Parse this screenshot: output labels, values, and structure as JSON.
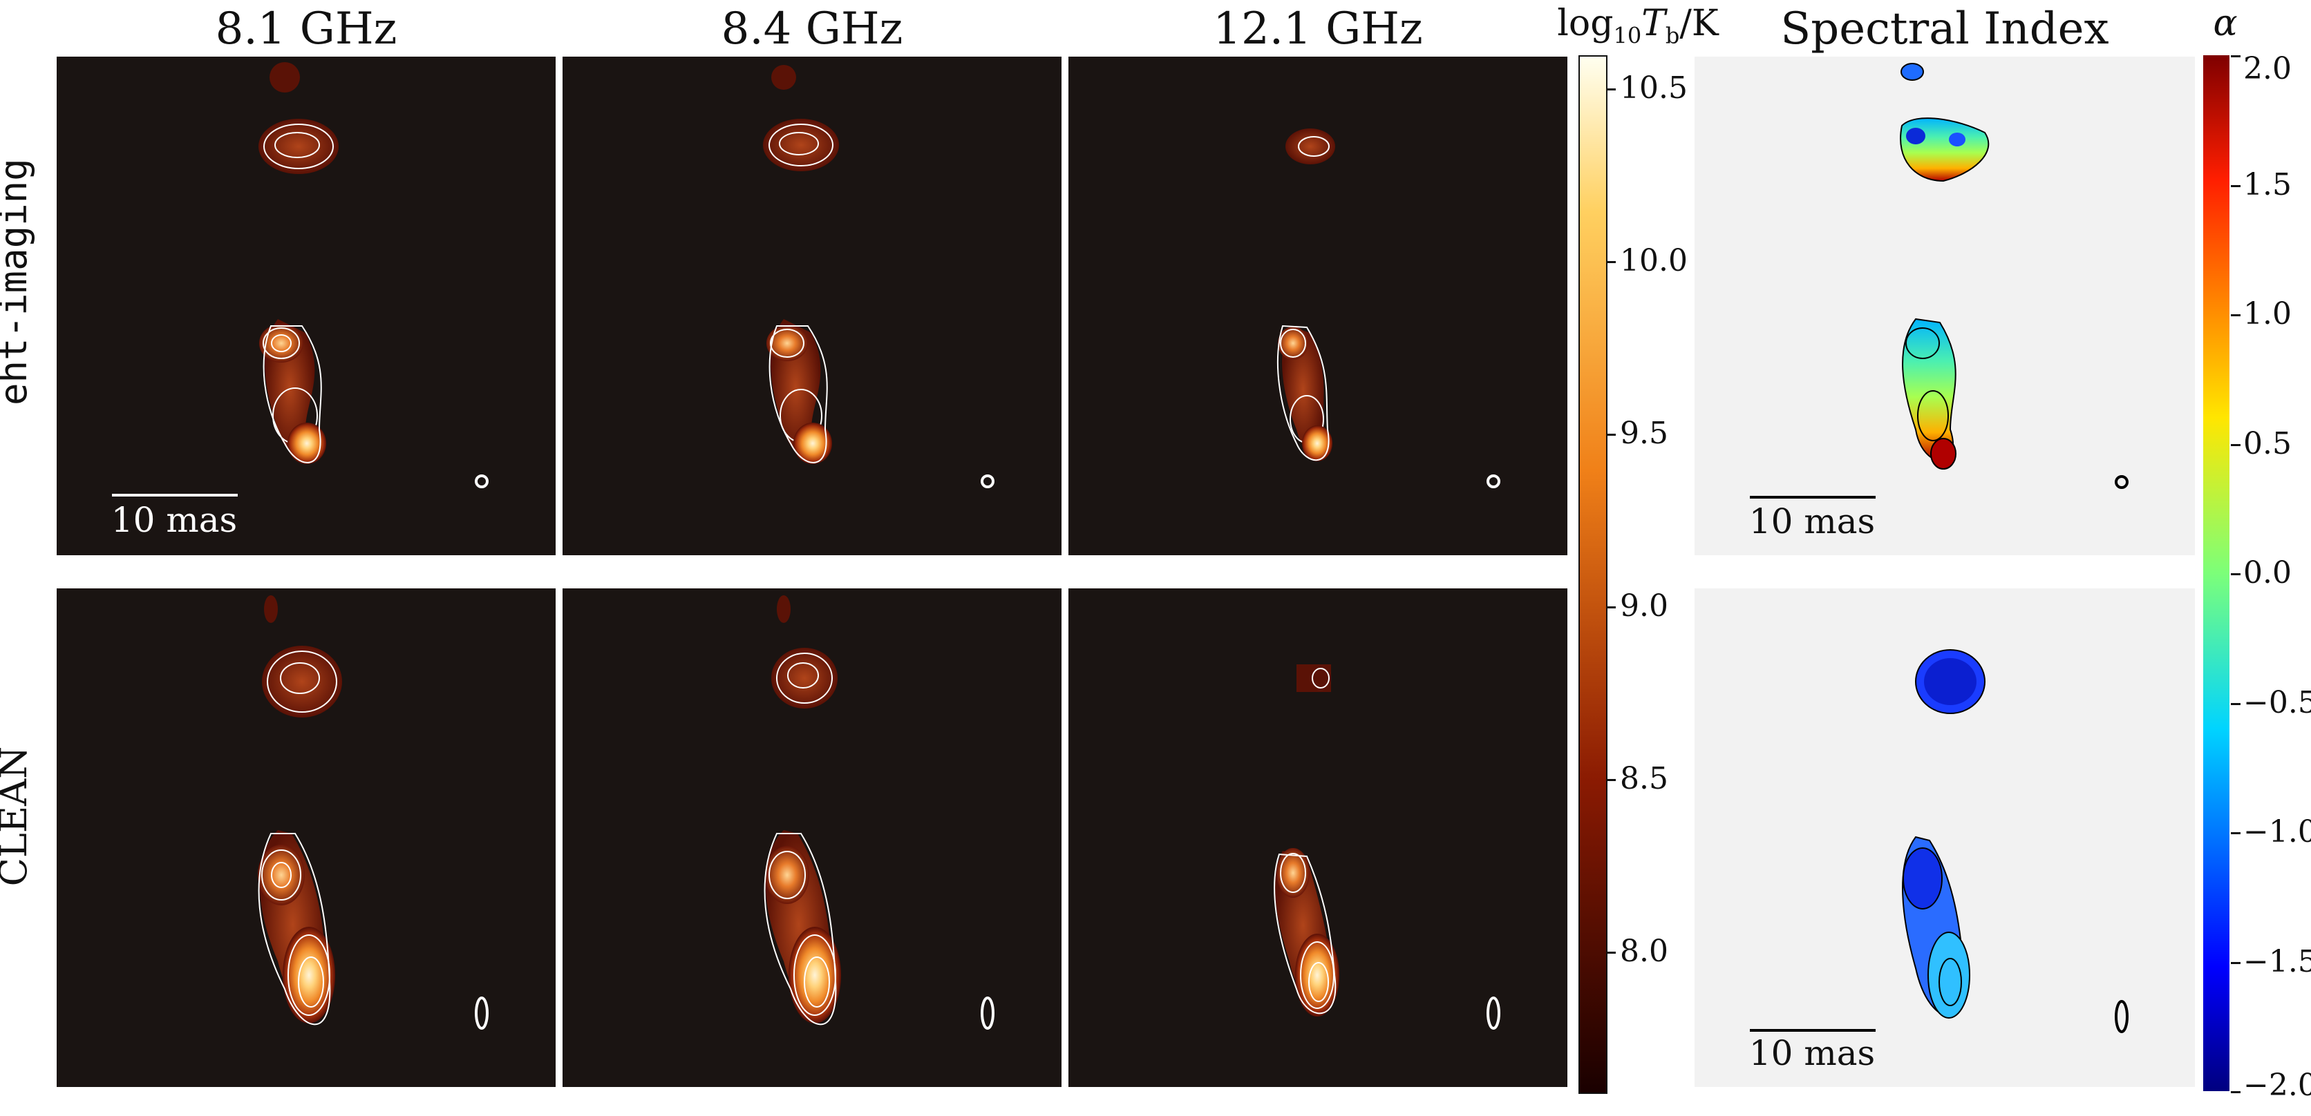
{
  "columns": [
    "8.1 GHz",
    "8.4 GHz",
    "12.1 GHz",
    "Spectral Index"
  ],
  "rows": [
    "eht-imaging",
    "CLEAN"
  ],
  "scalebar_label": "10 mas",
  "tb_colorbar": {
    "title": "log10Tb/K",
    "ticks": [
      "10.5",
      "10.0",
      "9.5",
      "9.0",
      "8.5",
      "8.0"
    ],
    "colormap": "afmhot"
  },
  "alpha_colorbar": {
    "title": "α",
    "ticks": [
      "2.0",
      "1.5",
      "1.0",
      "0.5",
      "0.0",
      "−0.5",
      "−1.0",
      "−1.5",
      "−2.0"
    ],
    "colormap": "jet"
  },
  "colors": {
    "image_background": "#1a1412",
    "spectral_background": "#f2f2f2",
    "contour_bright": "#ffffff",
    "contour_dark": "#000000"
  }
}
